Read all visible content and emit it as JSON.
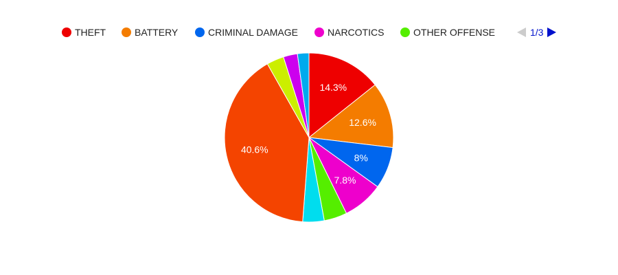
{
  "chart_data": {
    "type": "pie",
    "slices": [
      {
        "name": "THEFT",
        "value": 14.3,
        "label": "14.3%",
        "color": "#ee0000"
      },
      {
        "name": "BATTERY",
        "value": 12.6,
        "label": "12.6%",
        "color": "#f47c00"
      },
      {
        "name": "CRIMINAL DAMAGE",
        "value": 8.0,
        "label": "8%",
        "color": "#0066ee"
      },
      {
        "name": "NARCOTICS",
        "value": 7.8,
        "label": "7.8%",
        "color": "#ee00cc"
      },
      {
        "name": "OTHER OFFENSE",
        "value": 4.4,
        "label": "",
        "color": "#55ee00"
      },
      {
        "name": "",
        "value": 4.1,
        "label": "",
        "color": "#00ddee"
      },
      {
        "name": "",
        "value": 40.6,
        "label": "40.6%",
        "color": "#f44400"
      },
      {
        "name": "",
        "value": 3.3,
        "label": "",
        "color": "#ccee00"
      },
      {
        "name": "",
        "value": 2.7,
        "label": "",
        "color": "#cc00ee"
      },
      {
        "name": "",
        "value": 2.2,
        "label": "",
        "color": "#00aaee"
      }
    ],
    "legend": {
      "placement": "top",
      "entries": [
        "THEFT",
        "BATTERY",
        "CRIMINAL DAMAGE",
        "NARCOTICS",
        "OTHER OFFENSE"
      ],
      "page_indicator": "1/3"
    },
    "colors": {
      "pager_active": "#0011cc",
      "pager_inactive": "#cccccc"
    }
  }
}
